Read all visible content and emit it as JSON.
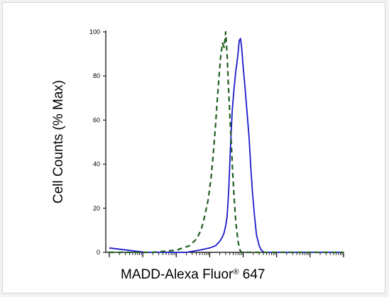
{
  "chart_data": {
    "type": "line",
    "title": "",
    "xlabel": "MADD-Alexa Fluor",
    "xlabel_superscript": "®",
    "xlabel_suffix": " 647",
    "ylabel": "Cell Counts (% Max)",
    "xscale": "log",
    "xlim": [
      1,
      10000000
    ],
    "ylim": [
      0,
      100
    ],
    "yticks": [
      0,
      20,
      40,
      60,
      80,
      100
    ],
    "ytick_labels": [
      "0",
      "20",
      "40",
      "60",
      "80",
      "100"
    ],
    "grid": false,
    "legend": "none",
    "series": [
      {
        "color": "#1a1acc",
        "style": "solid",
        "x": [
          1,
          12,
          40,
          200,
          500,
          1000,
          1500,
          2000,
          2400,
          2700,
          3000,
          3300,
          3700,
          4100,
          4700,
          5300,
          6000,
          6500,
          7000,
          7600,
          8300,
          9000,
          10000,
          11500,
          13000,
          15000,
          17000,
          19000,
          22000,
          25000,
          30000,
          35000,
          42000,
          50000,
          60000,
          100000,
          1000000,
          10000000
        ],
        "y": [
          2,
          0,
          0,
          0,
          1,
          2,
          3,
          5,
          7,
          9,
          12,
          16,
          28,
          45,
          64,
          74,
          82,
          86,
          90,
          96,
          97,
          93,
          84,
          74,
          64,
          52,
          38,
          27,
          16,
          8,
          3,
          1,
          0,
          0,
          0,
          0,
          0,
          0
        ]
      },
      {
        "color": "#1f5e1f",
        "style": "dashed",
        "x": [
          1,
          20,
          100,
          250,
          400,
          550,
          700,
          900,
          1100,
          1300,
          1500,
          1700,
          1900,
          2100,
          2400,
          2700,
          3000,
          3300,
          3600,
          4000,
          4400,
          4800,
          5300,
          6000,
          7000,
          8000,
          9000,
          10000,
          12000,
          14000,
          17000,
          20000,
          25000,
          40000,
          100000,
          10000000
        ],
        "y": [
          0,
          0,
          1,
          3,
          6,
          10,
          16,
          24,
          34,
          46,
          58,
          70,
          80,
          88,
          95,
          93,
          100,
          90,
          76,
          62,
          50,
          38,
          26,
          14,
          5,
          1,
          0,
          0,
          0,
          0,
          0,
          0,
          0,
          0,
          0,
          0
        ]
      }
    ]
  }
}
